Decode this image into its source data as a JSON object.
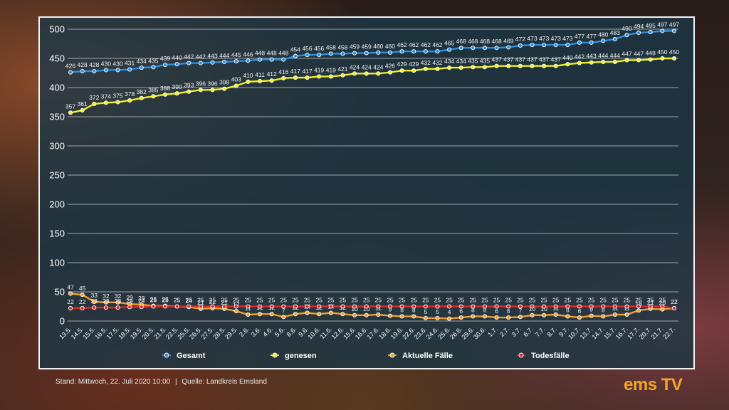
{
  "footer": {
    "stand": "Stand:  Mittwoch, 22. Juli 2020 10:00",
    "separator": "|",
    "quelle": "Quelle:  Landkreis Emsland"
  },
  "logo": {
    "text": "ems TV"
  },
  "chart_data": {
    "type": "line",
    "ylim": [
      0,
      500
    ],
    "yticks": [
      0,
      50,
      100,
      150,
      200,
      250,
      300,
      350,
      400,
      450,
      500
    ],
    "grid": true,
    "legend_position": "bottom",
    "categories": [
      "13.5.",
      "14.5.",
      "15.5.",
      "16.5.",
      "17.5.",
      "18.5.",
      "19.5.",
      "20.5.",
      "21.5.",
      "22.5.",
      "25.5.",
      "26.5.",
      "27.5.",
      "28.5.",
      "29.5.",
      "2.6.",
      "3.6.",
      "4.6.",
      "5.6.",
      "8.6.",
      "9.6.",
      "10.6.",
      "11.6.",
      "12.6.",
      "15.6.",
      "16.6.",
      "17.6.",
      "18.6.",
      "19.6.",
      "22.6.",
      "23.6.",
      "24.6.",
      "25.6.",
      "26.6.",
      "29.6.",
      "30.6.",
      "1.7.",
      "2.7.",
      "3.7.",
      "6.7.",
      "7.7.",
      "8.7.",
      "9.7.",
      "10.7.",
      "13.7.",
      "14.7.",
      "15.7.",
      "16.7.",
      "17.7.",
      "20.7.",
      "21.7.",
      "22.7."
    ],
    "series": [
      {
        "name": "Gesamt",
        "color": "#2f8fe0",
        "values": [
          426,
          428,
          428,
          430,
          430,
          431,
          434,
          435,
          439,
          440,
          442,
          442,
          443,
          444,
          445,
          446,
          448,
          448,
          448,
          454,
          456,
          456,
          458,
          458,
          459,
          459,
          460,
          460,
          462,
          462,
          462,
          462,
          465,
          468,
          468,
          468,
          468,
          469,
          472,
          473,
          473,
          473,
          473,
          477,
          477,
          480,
          483,
          490,
          494,
          495,
          497,
          497
        ]
      },
      {
        "name": "genesen",
        "color": "#f0f020",
        "values": [
          357,
          361,
          372,
          374,
          375,
          378,
          382,
          385,
          388,
          390,
          393,
          396,
          396,
          398,
          403,
          410,
          411,
          412,
          416,
          417,
          417,
          419,
          419,
          421,
          424,
          424,
          424,
          426,
          429,
          429,
          432,
          432,
          434,
          434,
          435,
          435,
          437,
          437,
          437,
          437,
          437,
          437,
          440,
          442,
          443,
          444,
          444,
          447,
          447,
          448,
          450,
          450
        ]
      },
      {
        "name": "Aktuelle Fälle",
        "color": "#f0a030",
        "values": [
          47,
          45,
          33,
          32,
          32,
          29,
          28,
          26,
          26,
          25,
          24,
          21,
          22,
          21,
          17,
          11,
          12,
          12,
          7,
          12,
          14,
          12,
          14,
          12,
          10,
          10,
          11,
          9,
          8,
          8,
          5,
          5,
          4,
          6,
          8,
          8,
          6,
          6,
          7,
          10,
          10,
          11,
          8,
          6,
          9,
          8,
          11,
          11,
          18,
          21,
          20,
          22
        ]
      },
      {
        "name": "Todesfälle",
        "color": "#e02828",
        "values": [
          22,
          22,
          23,
          23,
          23,
          24,
          24,
          25,
          25,
          25,
          25,
          25,
          25,
          25,
          25,
          25,
          25,
          25,
          25,
          25,
          25,
          25,
          25,
          25,
          25,
          25,
          25,
          25,
          25,
          25,
          25,
          25,
          25,
          25,
          25,
          25,
          25,
          25,
          25,
          25,
          25,
          25,
          25,
          25,
          25,
          25,
          25,
          25,
          25,
          25,
          25,
          22
        ]
      }
    ]
  }
}
